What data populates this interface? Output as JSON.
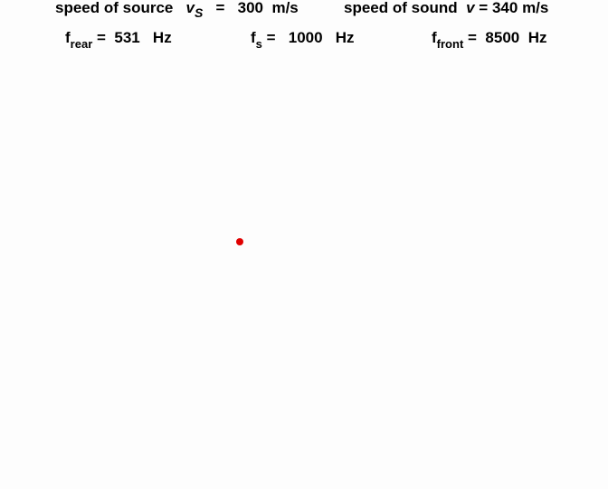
{
  "header": {
    "source_label": "speed of source",
    "source_symbol": "v",
    "source_subscript": "S",
    "source_equals": "=",
    "source_value": "300",
    "source_unit": "m/s",
    "sound_label": "speed of sound",
    "sound_symbol": "v",
    "sound_equals": "=",
    "sound_value": "340",
    "sound_unit": "m/s"
  },
  "frequencies": {
    "rear": {
      "symbol": "f",
      "subscript": "rear",
      "equals": "=",
      "value": "531",
      "unit": "Hz"
    },
    "source": {
      "symbol": "f",
      "subscript": "s",
      "equals": "=",
      "value": "1000",
      "unit": "Hz"
    },
    "front": {
      "symbol": "f",
      "subscript": "front",
      "equals": "=",
      "value": "8500",
      "unit": "Hz"
    }
  },
  "colors": {
    "source_dot": "#e00000",
    "background": "#fdfdfd"
  }
}
